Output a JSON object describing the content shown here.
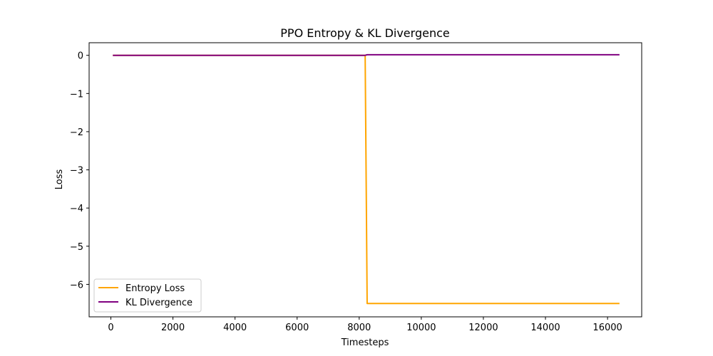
{
  "chart_data": {
    "type": "line",
    "title": "PPO Entropy & KL Divergence",
    "xlabel": "Timesteps",
    "ylabel": "Loss",
    "xlim": [
      -700,
      17100
    ],
    "ylim": [
      -6.85,
      0.33
    ],
    "xticks": [
      0,
      2000,
      4000,
      6000,
      8000,
      10000,
      12000,
      14000,
      16000
    ],
    "yticks": [
      0,
      -1,
      -2,
      -3,
      -4,
      -5,
      -6
    ],
    "grid": false,
    "legend": "lower-left",
    "series": [
      {
        "name": "Entropy Loss",
        "color": "#ffa500",
        "x": [
          64,
          8192,
          8256,
          16384
        ],
        "y": [
          -0.001,
          -0.001,
          -6.5,
          -6.5
        ]
      },
      {
        "name": "KL Divergence",
        "color": "#800080",
        "x": [
          64,
          8192,
          8256,
          16384
        ],
        "y": [
          0.0,
          0.0,
          0.015,
          0.015
        ]
      }
    ]
  }
}
